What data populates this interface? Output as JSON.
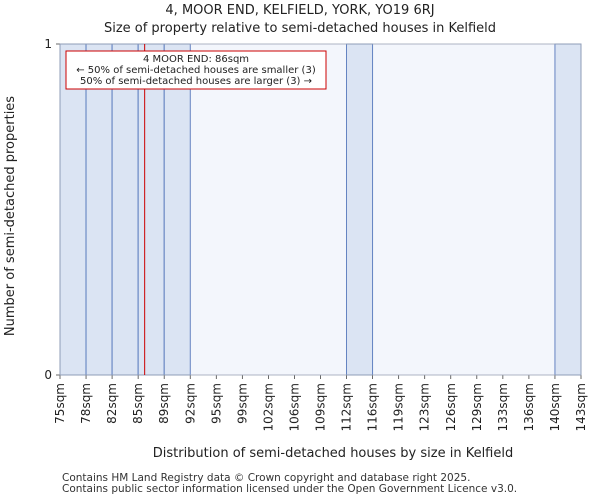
{
  "chart_data": {
    "type": "bar",
    "title_line1": "4, MOOR END, KELFIELD, YORK, YO19 6RJ",
    "title_line2": "Size of property relative to semi-detached houses in Kelfield",
    "xlabel": "Distribution of semi-detached houses by size in Kelfield",
    "ylabel": "Number of semi-detached properties",
    "categories": [
      "75sqm",
      "78sqm",
      "82sqm",
      "85sqm",
      "89sqm",
      "92sqm",
      "95sqm",
      "99sqm",
      "102sqm",
      "106sqm",
      "109sqm",
      "112sqm",
      "116sqm",
      "119sqm",
      "123sqm",
      "126sqm",
      "129sqm",
      "133sqm",
      "136sqm",
      "140sqm",
      "143sqm"
    ],
    "values": [
      1,
      1,
      1,
      1,
      1,
      0,
      0,
      0,
      0,
      0,
      0,
      1,
      0,
      0,
      0,
      0,
      0,
      0,
      0,
      1,
      0
    ],
    "ylim": [
      0,
      1
    ],
    "yticks": [
      0,
      1
    ],
    "marker": {
      "value": 86,
      "unit": "sqm",
      "color": "#cc0000"
    },
    "annotation": {
      "line1": "4 MOOR END: 86sqm",
      "line2": "← 50% of semi-detached houses are smaller (3)",
      "line3": "50% of semi-detached houses are larger (3) →"
    },
    "colors": {
      "bar_fill": "#dbe4f3",
      "bar_edge": "#5577bb",
      "plot_bg": "#f3f6fc"
    }
  },
  "footer": {
    "line1": "Contains HM Land Registry data © Crown copyright and database right 2025.",
    "line2": "Contains public sector information licensed under the Open Government Licence v3.0."
  }
}
